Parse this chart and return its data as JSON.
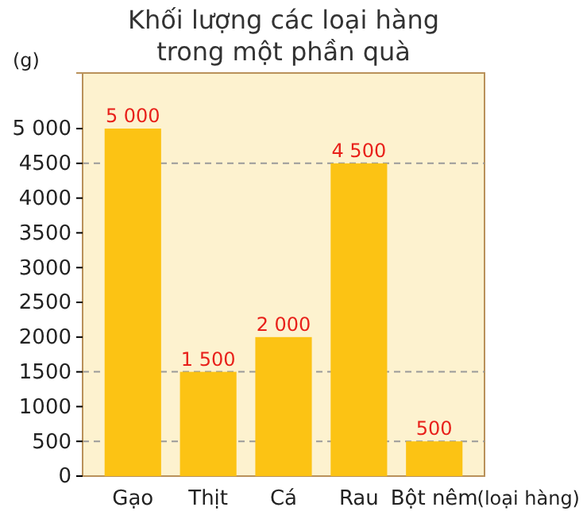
{
  "chart_data": {
    "type": "bar",
    "title": "Khối lượng các loại hàng\ntrong một phần quà",
    "ylabel": "(g)",
    "xlabel": "(loại hàng)",
    "categories": [
      "Gạo",
      "Thịt",
      "Cá",
      "Rau",
      "Bột nêm"
    ],
    "values": [
      5000,
      1500,
      2000,
      4500,
      500
    ],
    "value_labels": [
      "5 000",
      "1 500",
      "2 000",
      "4 500",
      "500"
    ],
    "color": "#fcc314",
    "ylim": [
      0,
      5800
    ],
    "yticks": [
      0,
      500,
      1000,
      1500,
      2000,
      2500,
      3000,
      3500,
      4000,
      4500,
      {
        "value": 5000,
        "label": "5 000"
      }
    ],
    "ref_lines": [
      {
        "axis": "y",
        "value": 500,
        "line_style": "dashed",
        "color": "#9a9a9a"
      },
      {
        "axis": "y",
        "value": 1500,
        "line_style": "dashed",
        "color": "#9a9a9a"
      },
      {
        "axis": "y",
        "value": 4500,
        "line_style": "dashed",
        "color": "#9a9a9a"
      }
    ]
  }
}
